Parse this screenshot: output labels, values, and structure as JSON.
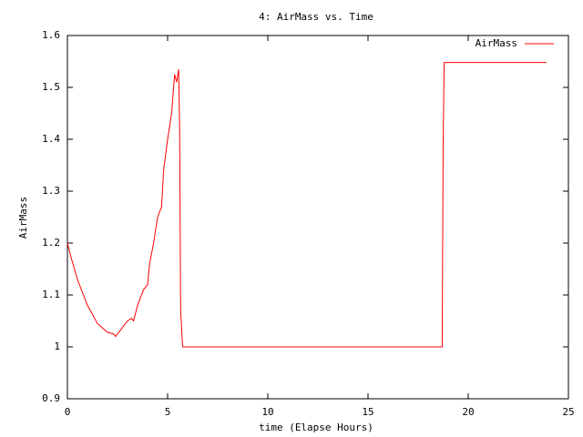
{
  "chart_data": {
    "type": "line",
    "title": "4: AirMass vs. Time",
    "x_label": "time (Elapse Hours)",
    "y_label": "AirMass",
    "x": [
      0,
      0.2,
      0.5,
      1.0,
      1.5,
      2.0,
      2.3,
      2.4,
      2.6,
      3.0,
      3.2,
      3.3,
      3.5,
      3.8,
      4.0,
      4.1,
      4.3,
      4.5,
      4.6,
      4.7,
      4.8,
      5.0,
      5.2,
      5.35,
      5.45,
      5.55,
      5.6,
      5.65,
      5.75,
      18.7,
      18.75,
      18.8,
      23.9
    ],
    "series": [
      {
        "name": "AirMass",
        "color": "#ff0000",
        "values": [
          1.2,
          1.17,
          1.13,
          1.08,
          1.045,
          1.028,
          1.025,
          1.02,
          1.03,
          1.05,
          1.055,
          1.05,
          1.08,
          1.11,
          1.12,
          1.16,
          1.2,
          1.25,
          1.26,
          1.27,
          1.34,
          1.4,
          1.45,
          1.525,
          1.51,
          1.535,
          1.42,
          1.07,
          1.0,
          1.0,
          1.4,
          1.548,
          1.548
        ]
      }
    ],
    "xlim": [
      0,
      25
    ],
    "xticks": [
      0,
      5,
      10,
      15,
      20,
      25
    ],
    "ylim": [
      0.9,
      1.6
    ],
    "yticks": [
      0.9,
      1,
      1.1,
      1.2,
      1.3,
      1.4,
      1.5,
      1.6
    ],
    "legend": "top-right"
  }
}
